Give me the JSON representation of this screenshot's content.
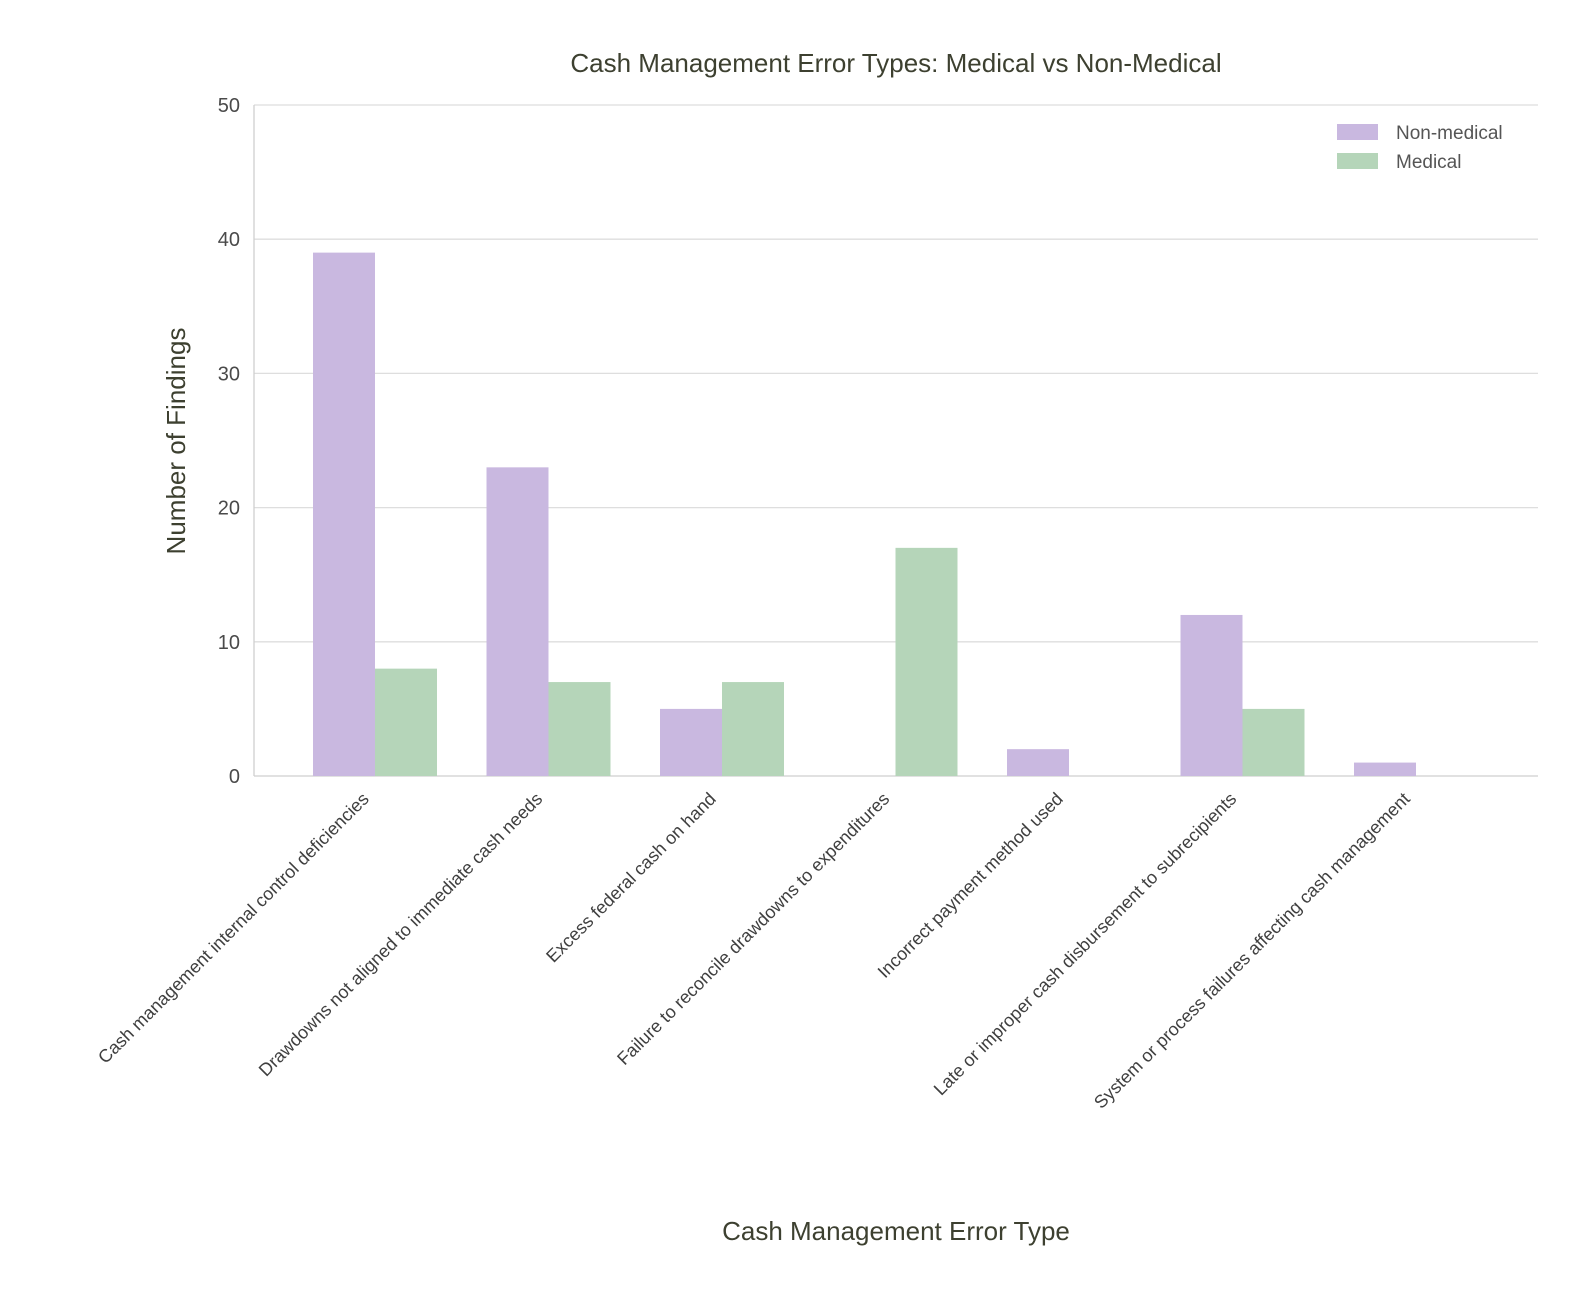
{
  "chart_data": {
    "type": "bar",
    "title": "Cash Management Error Types: Medical vs Non-Medical",
    "xlabel": "Cash Management Error Type",
    "ylabel": "Number of Findings",
    "ylim": [
      0,
      50
    ],
    "yticks": [
      0,
      10,
      20,
      30,
      40,
      50
    ],
    "grid": true,
    "legend_position": "top-right",
    "categories": [
      "Cash management internal control deficiencies",
      "Drawdowns not aligned to immediate cash needs",
      "Excess federal cash on hand",
      "Failure to reconcile drawdowns to expenditures",
      "Incorrect payment method used",
      "Late or improper cash disbursement to subrecipients",
      "System or process failures affecting cash management"
    ],
    "series": [
      {
        "name": "Non-medical",
        "color": "#c9b8e0",
        "values": [
          39,
          23,
          5,
          0,
          2,
          12,
          1
        ]
      },
      {
        "name": "Medical",
        "color": "#b5d5b9",
        "values": [
          8,
          7,
          7,
          17,
          0,
          5,
          0
        ]
      }
    ]
  }
}
